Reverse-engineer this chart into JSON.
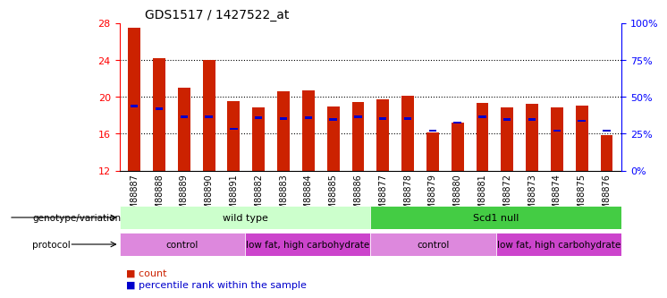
{
  "title": "GDS1517 / 1427522_at",
  "samples": [
    "GSM88887",
    "GSM88888",
    "GSM88889",
    "GSM88890",
    "GSM88891",
    "GSM88882",
    "GSM88883",
    "GSM88884",
    "GSM88885",
    "GSM88886",
    "GSM88877",
    "GSM88878",
    "GSM88879",
    "GSM88880",
    "GSM88881",
    "GSM88872",
    "GSM88873",
    "GSM88874",
    "GSM88875",
    "GSM88876"
  ],
  "bar_heights": [
    27.5,
    24.2,
    21.0,
    24.0,
    19.5,
    18.8,
    20.6,
    20.7,
    18.9,
    19.4,
    19.7,
    20.1,
    16.1,
    17.2,
    19.3,
    18.8,
    19.2,
    18.8,
    19.0,
    15.8
  ],
  "blue_values": [
    19.0,
    18.7,
    17.8,
    17.8,
    16.5,
    17.7,
    17.6,
    17.7,
    17.5,
    17.8,
    17.6,
    17.6,
    16.3,
    17.2,
    17.8,
    17.5,
    17.5,
    16.3,
    17.4,
    16.3
  ],
  "y_min": 12,
  "y_max": 28,
  "y_ticks_left": [
    12,
    16,
    20,
    24,
    28
  ],
  "y_ticks_right": [
    0,
    25,
    50,
    75,
    100
  ],
  "bar_color": "#cc2200",
  "blue_color": "#0000cc",
  "genotype_groups": [
    {
      "label": "wild type",
      "start": 0,
      "end": 10,
      "color": "#ccffcc"
    },
    {
      "label": "Scd1 null",
      "start": 10,
      "end": 20,
      "color": "#44cc44"
    }
  ],
  "protocol_groups": [
    {
      "label": "control",
      "start": 0,
      "end": 5,
      "color": "#dd88dd"
    },
    {
      "label": "low fat, high carbohydrate",
      "start": 5,
      "end": 10,
      "color": "#cc44cc"
    },
    {
      "label": "control",
      "start": 10,
      "end": 15,
      "color": "#dd88dd"
    },
    {
      "label": "low fat, high carbohydrate",
      "start": 15,
      "end": 20,
      "color": "#cc44cc"
    }
  ],
  "legend_count_color": "#cc2200",
  "legend_pct_color": "#0000cc",
  "bar_width": 0.5,
  "background_color": "#ffffff",
  "plot_bg_color": "#ffffff"
}
